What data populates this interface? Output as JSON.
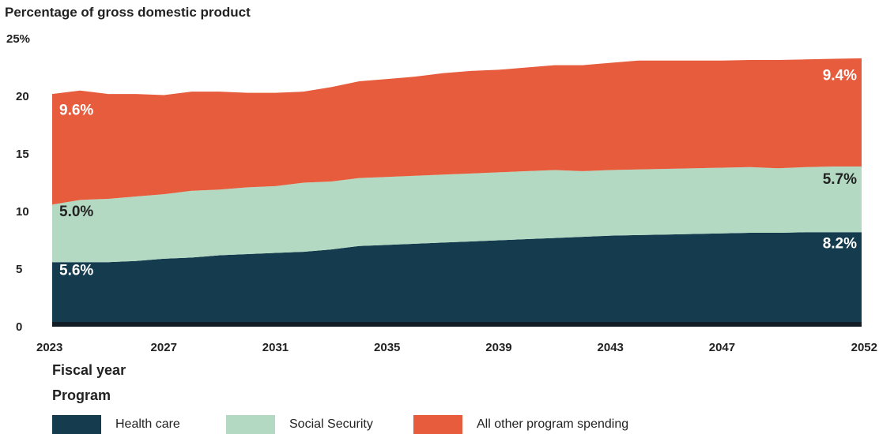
{
  "chart_data": {
    "type": "area",
    "stacked": true,
    "title": "Percentage of gross domestic product",
    "xlabel": "Fiscal year",
    "ylabel": "",
    "ylim": [
      0,
      25
    ],
    "yticks": [
      0,
      5,
      10,
      15,
      20,
      25
    ],
    "ytick_labels": [
      "0",
      "5",
      "10",
      "15",
      "20",
      "25%"
    ],
    "xticks": [
      2023,
      2027,
      2031,
      2035,
      2039,
      2043,
      2047,
      2052
    ],
    "x": [
      2023,
      2024,
      2025,
      2026,
      2027,
      2028,
      2029,
      2030,
      2031,
      2032,
      2033,
      2034,
      2035,
      2036,
      2037,
      2038,
      2039,
      2040,
      2041,
      2042,
      2043,
      2044,
      2045,
      2046,
      2047,
      2048,
      2049,
      2050,
      2051,
      2052
    ],
    "series": [
      {
        "name": "Health care",
        "color": "#143b4e",
        "values": [
          5.6,
          5.6,
          5.6,
          5.7,
          5.9,
          6.0,
          6.2,
          6.3,
          6.4,
          6.5,
          6.7,
          7.0,
          7.1,
          7.2,
          7.3,
          7.4,
          7.5,
          7.6,
          7.7,
          7.8,
          7.9,
          7.95,
          8.0,
          8.05,
          8.1,
          8.15,
          8.15,
          8.2,
          8.2,
          8.2
        ]
      },
      {
        "name": "Social Security",
        "color": "#b3d9c2",
        "values": [
          5.0,
          5.4,
          5.5,
          5.6,
          5.6,
          5.8,
          5.7,
          5.8,
          5.8,
          6.0,
          5.9,
          5.9,
          5.9,
          5.9,
          5.9,
          5.9,
          5.9,
          5.9,
          5.9,
          5.7,
          5.7,
          5.7,
          5.7,
          5.7,
          5.7,
          5.7,
          5.6,
          5.65,
          5.7,
          5.7
        ]
      },
      {
        "name": "All other program spending",
        "color": "#e65c3c",
        "values": [
          9.6,
          9.5,
          9.1,
          8.9,
          8.6,
          8.6,
          8.5,
          8.2,
          8.1,
          7.9,
          8.2,
          8.4,
          8.5,
          8.6,
          8.8,
          8.9,
          8.9,
          9.0,
          9.1,
          9.2,
          9.3,
          9.45,
          9.4,
          9.35,
          9.3,
          9.3,
          9.4,
          9.35,
          9.35,
          9.4
        ]
      }
    ],
    "bottom_band": {
      "value": 0.4,
      "color": "#111c24"
    },
    "annotations": [
      {
        "text": "5.6%",
        "x": 2023,
        "y": 4.5,
        "color": "#ffffff",
        "anchor": "start"
      },
      {
        "text": "5.0%",
        "x": 2023,
        "y": 9.6,
        "color": "#222222",
        "anchor": "start"
      },
      {
        "text": "9.6%",
        "x": 2023,
        "y": 18.4,
        "color": "#ffffff",
        "anchor": "start"
      },
      {
        "text": "8.2%",
        "x": 2052,
        "y": 6.8,
        "color": "#ffffff",
        "anchor": "end"
      },
      {
        "text": "5.7%",
        "x": 2052,
        "y": 12.4,
        "color": "#222222",
        "anchor": "end"
      },
      {
        "text": "9.4%",
        "x": 2052,
        "y": 21.4,
        "color": "#ffffff",
        "anchor": "end"
      }
    ],
    "legend_title": "Program",
    "legend_position": "bottom-left",
    "grid": false
  }
}
